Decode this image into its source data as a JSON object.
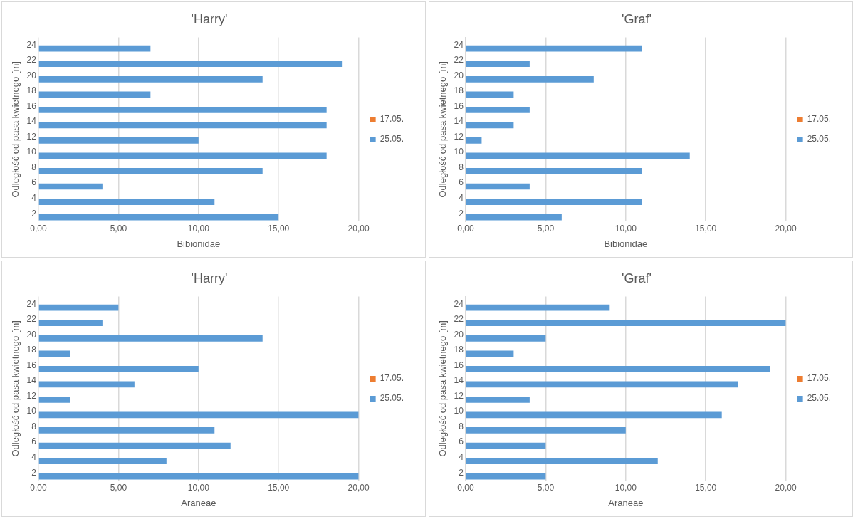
{
  "chart_data": [
    {
      "type": "bar",
      "orientation": "horizontal",
      "title": "'Harry'",
      "xlabel": "Bibionidae",
      "ylabel": "Odległość od pasa kwietnego [m]",
      "categories": [
        "24",
        "22",
        "20",
        "18",
        "16",
        "14",
        "12",
        "10",
        "8",
        "6",
        "4",
        "2"
      ],
      "series": [
        {
          "name": "17.05.",
          "color": "#ed7d31",
          "values": [
            0,
            0,
            0,
            0,
            0,
            0,
            0,
            0,
            0,
            0,
            0,
            0
          ]
        },
        {
          "name": "25.05.",
          "color": "#5b9bd5",
          "values": [
            7,
            19,
            14,
            7,
            18,
            18,
            10,
            18,
            14,
            4,
            11,
            15
          ]
        }
      ],
      "xlim": [
        0,
        20
      ],
      "xticks": [
        {
          "value": 0,
          "label": "0,00"
        },
        {
          "value": 5,
          "label": "5,00"
        },
        {
          "value": 10,
          "label": "10,00"
        },
        {
          "value": 15,
          "label": "15,00"
        },
        {
          "value": 20,
          "label": "20,00"
        }
      ],
      "grid": "x",
      "legend": "right"
    },
    {
      "type": "bar",
      "orientation": "horizontal",
      "title": "'Graf'",
      "xlabel": "Bibionidae",
      "ylabel": "Odległość od pasa kwietnego [m]",
      "categories": [
        "24",
        "22",
        "20",
        "18",
        "16",
        "14",
        "12",
        "10",
        "8",
        "6",
        "4",
        "2"
      ],
      "series": [
        {
          "name": "17.05.",
          "color": "#ed7d31",
          "values": [
            0,
            0,
            0,
            0,
            0,
            0,
            0,
            0,
            0,
            0,
            0,
            0
          ]
        },
        {
          "name": "25.05.",
          "color": "#5b9bd5",
          "values": [
            11,
            4,
            8,
            3,
            4,
            3,
            1,
            14,
            11,
            4,
            11,
            6
          ]
        }
      ],
      "xlim": [
        0,
        20
      ],
      "xticks": [
        {
          "value": 0,
          "label": "0,00"
        },
        {
          "value": 5,
          "label": "5,00"
        },
        {
          "value": 10,
          "label": "10,00"
        },
        {
          "value": 15,
          "label": "15,00"
        },
        {
          "value": 20,
          "label": "20,00"
        }
      ],
      "grid": "x",
      "legend": "right"
    },
    {
      "type": "bar",
      "orientation": "horizontal",
      "title": "'Harry'",
      "xlabel": "Araneae",
      "ylabel": "Odległość od pasa kwietnego [m]",
      "categories": [
        "24",
        "22",
        "20",
        "18",
        "16",
        "14",
        "12",
        "10",
        "8",
        "6",
        "4",
        "2"
      ],
      "series": [
        {
          "name": "17.05.",
          "color": "#ed7d31",
          "values": [
            0,
            0,
            0,
            0,
            0,
            0,
            0,
            0,
            0,
            0,
            0,
            0
          ]
        },
        {
          "name": "25.05.",
          "color": "#5b9bd5",
          "values": [
            5,
            4,
            14,
            2,
            10,
            6,
            2,
            20,
            11,
            12,
            8,
            20
          ]
        }
      ],
      "xlim": [
        0,
        20
      ],
      "xticks": [
        {
          "value": 0,
          "label": "0,00"
        },
        {
          "value": 5,
          "label": "5,00"
        },
        {
          "value": 10,
          "label": "10,00"
        },
        {
          "value": 15,
          "label": "15,00"
        },
        {
          "value": 20,
          "label": "20,00"
        }
      ],
      "grid": "x",
      "legend": "right"
    },
    {
      "type": "bar",
      "orientation": "horizontal",
      "title": "'Graf'",
      "xlabel": "Araneae",
      "ylabel": "Odległość od pasa kwietnego [m]",
      "categories": [
        "24",
        "22",
        "20",
        "18",
        "16",
        "14",
        "12",
        "10",
        "8",
        "6",
        "4",
        "2"
      ],
      "series": [
        {
          "name": "17.05.",
          "color": "#ed7d31",
          "values": [
            0,
            0,
            0,
            0,
            0,
            0,
            0,
            0,
            0,
            0,
            0,
            0
          ]
        },
        {
          "name": "25.05.",
          "color": "#5b9bd5",
          "values": [
            9,
            20,
            5,
            3,
            19,
            17,
            4,
            16,
            10,
            5,
            12,
            5
          ]
        }
      ],
      "xlim": [
        0,
        20
      ],
      "xticks": [
        {
          "value": 0,
          "label": "0,00"
        },
        {
          "value": 5,
          "label": "5,00"
        },
        {
          "value": 10,
          "label": "10,00"
        },
        {
          "value": 15,
          "label": "15,00"
        },
        {
          "value": 20,
          "label": "20,00"
        }
      ],
      "grid": "x",
      "legend": "right"
    }
  ]
}
